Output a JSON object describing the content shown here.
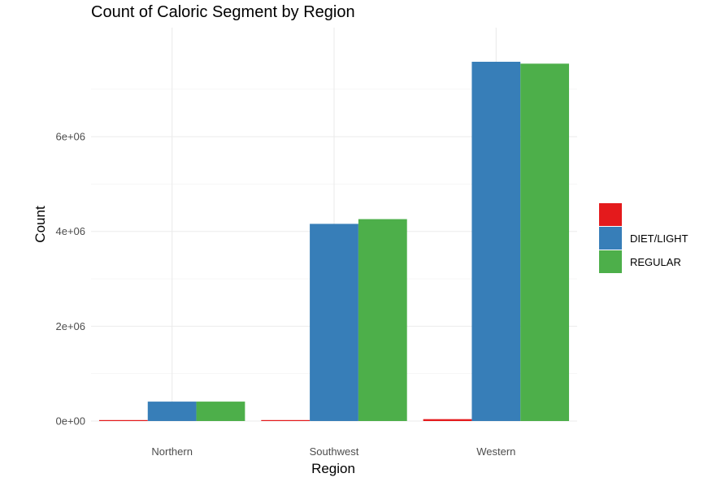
{
  "chart_data": {
    "type": "bar",
    "title": "Count of Caloric Segment by Region",
    "xlabel": "Region",
    "ylabel": "Count",
    "categories": [
      "Northern",
      "Southwest",
      "Western"
    ],
    "series": [
      {
        "name": "",
        "color": "#E41A1C",
        "values": [
          5000,
          15000,
          40000
        ]
      },
      {
        "name": "DIET/LIGHT",
        "color": "#377EB8",
        "values": [
          410000,
          4160000,
          7580000
        ]
      },
      {
        "name": "REGULAR",
        "color": "#4DAF4A",
        "values": [
          410000,
          4260000,
          7540000
        ]
      }
    ],
    "ylim": [
      0,
      8300000
    ],
    "y_ticks": [
      0,
      2000000,
      4000000,
      6000000
    ],
    "y_tick_labels": [
      "0e+00",
      "2e+06",
      "4e+06",
      "6e+06"
    ],
    "grid": true,
    "legend_position": "right"
  }
}
